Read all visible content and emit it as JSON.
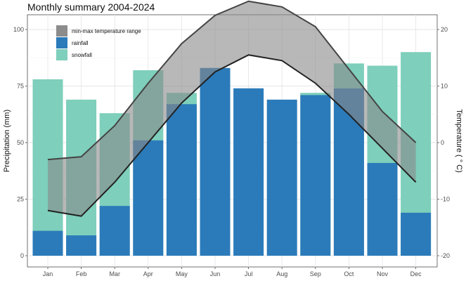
{
  "chart_data": {
    "type": "bar",
    "title": "Monthly summary 2004-2024",
    "categories": [
      "Jan",
      "Feb",
      "Mar",
      "Apr",
      "May",
      "Jun",
      "Jul",
      "Aug",
      "Sep",
      "Oct",
      "Nov",
      "Dec"
    ],
    "ylabel": "Precipitation (mm)",
    "y2label": "Temperature ( ° C)",
    "ylim": [
      0,
      100
    ],
    "yticks": [
      0,
      25,
      50,
      75,
      100
    ],
    "y2lim": [
      -25,
      25
    ],
    "y2ticks": [
      -20,
      -10,
      0,
      10,
      20
    ],
    "series": [
      {
        "name": "rainfall",
        "kind": "bar",
        "color": "#2b7bba",
        "values": [
          11,
          9,
          22,
          51,
          67,
          83,
          74,
          69,
          71,
          74,
          41,
          19
        ]
      },
      {
        "name": "snowfall",
        "kind": "bar-stacked-total",
        "color": "#7ecfbb",
        "values": [
          78,
          69,
          63,
          82,
          72,
          0,
          0,
          0,
          72,
          85,
          84,
          90
        ]
      },
      {
        "name": "min-max temperature range",
        "kind": "band",
        "color": "#888888",
        "tmin": [
          -12,
          -13,
          -7,
          0,
          7,
          12.5,
          15.5,
          14.5,
          10.5,
          5,
          -1,
          -7
        ],
        "tmax": [
          -3,
          -2.5,
          3,
          10.5,
          17.5,
          22.5,
          25,
          24,
          20.5,
          13,
          5.5,
          0
        ]
      }
    ],
    "legend": {
      "position": "top-left",
      "items": [
        "min-max temperature range",
        "rainfall",
        "snowfall"
      ]
    },
    "grid": true
  }
}
